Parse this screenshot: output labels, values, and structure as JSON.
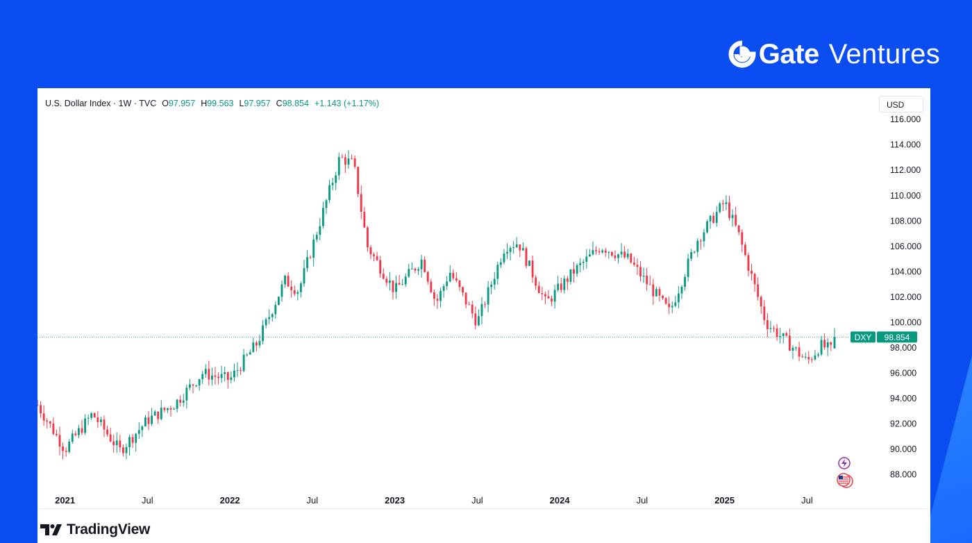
{
  "brand": {
    "gate": "Gate",
    "ventures": "Ventures"
  },
  "legend": {
    "symbol": "U.S. Dollar Index · 1W · TVC",
    "o_label": "O",
    "o_value": "97.957",
    "h_label": "H",
    "h_value": "99.563",
    "l_label": "L",
    "l_value": "97.957",
    "c_label": "C",
    "c_value": "98.854",
    "change": "+1.143 (+1.17%)"
  },
  "currency": "USD",
  "footer": {
    "logo_text": "TradingView"
  },
  "colors": {
    "up": "#089981",
    "down": "#f23645",
    "background": "#0a4df0",
    "price_line": "#089981"
  },
  "chart_data": {
    "type": "candlestick",
    "title": "U.S. Dollar Index · 1W · TVC",
    "xlabel": "",
    "ylabel": "",
    "ylim": [
      87,
      116.5
    ],
    "y_ticks": [
      "88.000",
      "90.000",
      "92.000",
      "94.000",
      "96.000",
      "98.000",
      "100.000",
      "102.000",
      "104.000",
      "106.000",
      "108.000",
      "110.000",
      "112.000",
      "114.000",
      "116.000"
    ],
    "x_ticks": [
      {
        "label": "2021",
        "date": "2021-01",
        "bold": true
      },
      {
        "label": "Jul",
        "date": "2021-07",
        "bold": false
      },
      {
        "label": "2022",
        "date": "2022-01",
        "bold": true
      },
      {
        "label": "Jul",
        "date": "2022-07",
        "bold": false
      },
      {
        "label": "2023",
        "date": "2023-01",
        "bold": true
      },
      {
        "label": "Jul",
        "date": "2023-07",
        "bold": false
      },
      {
        "label": "2024",
        "date": "2024-01",
        "bold": true
      },
      {
        "label": "Jul",
        "date": "2024-07",
        "bold": false
      },
      {
        "label": "2025",
        "date": "2025-01",
        "bold": true
      },
      {
        "label": "Jul",
        "date": "2025-07",
        "bold": false
      }
    ],
    "x_range": [
      "2020-11",
      "2025-09"
    ],
    "path": [
      [
        "2020-11",
        93.5
      ],
      [
        "2021-01",
        90.0
      ],
      [
        "2021-03",
        92.8
      ],
      [
        "2021-05",
        89.9
      ],
      [
        "2021-07",
        92.3
      ],
      [
        "2021-09",
        93.6
      ],
      [
        "2021-11",
        96.0
      ],
      [
        "2022-01",
        95.5
      ],
      [
        "2022-03",
        98.4
      ],
      [
        "2022-05",
        103.3
      ],
      [
        "2022-06",
        102.5
      ],
      [
        "2022-07",
        106.0
      ],
      [
        "2022-09",
        113.0
      ],
      [
        "2022-10",
        112.5
      ],
      [
        "2022-11",
        106.0
      ],
      [
        "2023-01",
        102.5
      ],
      [
        "2023-03",
        105.0
      ],
      [
        "2023-04",
        101.5
      ],
      [
        "2023-05",
        104.0
      ],
      [
        "2023-07",
        100.0
      ],
      [
        "2023-09",
        106.0
      ],
      [
        "2023-10",
        106.3
      ],
      [
        "2023-12",
        101.5
      ],
      [
        "2024-02",
        104.0
      ],
      [
        "2024-04",
        106.0
      ],
      [
        "2024-06",
        105.0
      ],
      [
        "2024-09",
        100.8
      ],
      [
        "2024-11",
        106.5
      ],
      [
        "2025-01",
        109.5
      ],
      [
        "2025-02",
        107.0
      ],
      [
        "2025-04",
        100.0
      ],
      [
        "2025-06",
        98.0
      ],
      [
        "2025-07",
        96.9
      ],
      [
        "2025-08",
        98.2
      ],
      [
        "2025-09",
        97.7
      ]
    ],
    "last": {
      "label": "DXY",
      "value": 98.854,
      "open": 97.957,
      "high": 99.563,
      "low": 97.957
    }
  }
}
